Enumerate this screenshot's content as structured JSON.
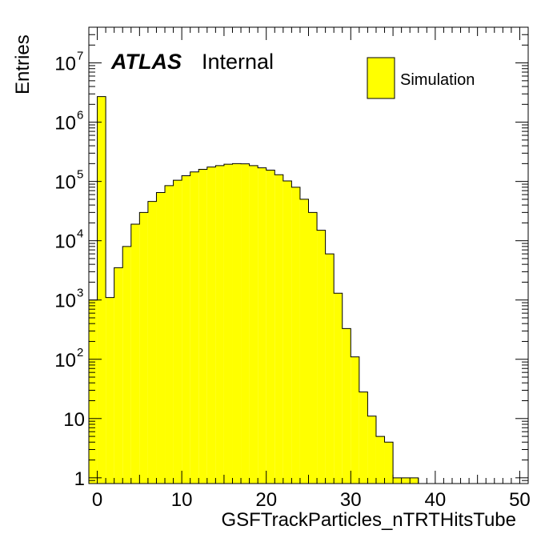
{
  "chart_data": {
    "type": "bar",
    "style": "histogram",
    "xlabel": "GSFTrackParticles_nTRTHitsTube",
    "ylabel": "Entries",
    "xlim": [
      -1,
      51
    ],
    "ylim": [
      0.8,
      40000000
    ],
    "y_scale": "log",
    "grid": false,
    "bin_width": 1,
    "x_ticks": [
      0,
      10,
      20,
      30,
      40,
      50
    ],
    "x_tick_labels": [
      "0",
      "10",
      "20",
      "30",
      "40",
      "50"
    ],
    "y_ticks": [
      {
        "value": 1,
        "base": "1",
        "exp": ""
      },
      {
        "value": 10,
        "base": "10",
        "exp": ""
      },
      {
        "value": 100,
        "base": "10",
        "exp": "2"
      },
      {
        "value": 1000,
        "base": "10",
        "exp": "3"
      },
      {
        "value": 10000,
        "base": "10",
        "exp": "4"
      },
      {
        "value": 100000,
        "base": "10",
        "exp": "5"
      },
      {
        "value": 1000000,
        "base": "10",
        "exp": "6"
      },
      {
        "value": 10000000,
        "base": "10",
        "exp": "7"
      }
    ],
    "series": [
      {
        "name": "Simulation",
        "color": "#ffff00",
        "edge_color": "#000000",
        "bin_low_edges": [
          -1,
          0,
          1,
          2,
          3,
          4,
          5,
          6,
          7,
          8,
          9,
          10,
          11,
          12,
          13,
          14,
          15,
          16,
          17,
          18,
          19,
          20,
          21,
          22,
          23,
          24,
          25,
          26,
          27,
          28,
          29,
          30,
          31,
          32,
          33,
          34,
          35,
          36,
          37,
          38,
          39
        ],
        "values": [
          1000,
          2700000,
          1100,
          3500,
          8000,
          19000,
          30000,
          46000,
          65000,
          85000,
          105000,
          125000,
          145000,
          160000,
          175000,
          185000,
          195000,
          200000,
          198000,
          185000,
          170000,
          155000,
          130000,
          102000,
          80000,
          50000,
          30000,
          15000,
          6000,
          1300,
          330,
          110,
          28,
          11,
          5,
          4,
          1,
          1,
          1,
          0.5,
          0.5
        ]
      }
    ],
    "annotations": {
      "atlas": "ATLAS",
      "status": "Internal"
    },
    "legend": {
      "placement": "top-right",
      "entries": [
        "Simulation"
      ]
    }
  }
}
